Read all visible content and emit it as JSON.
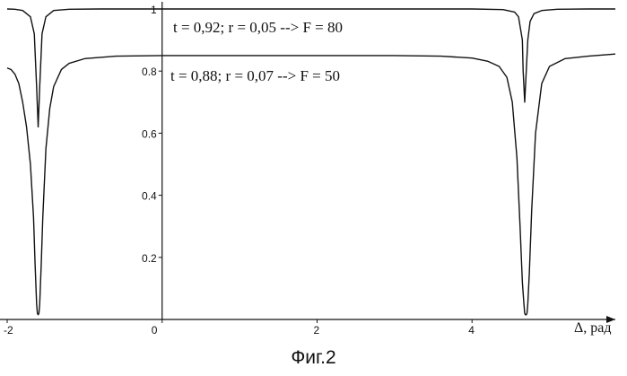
{
  "caption": "Фиг.2",
  "chart_data": {
    "type": "line",
    "xlabel": "Δ, рад",
    "ylabel": "",
    "xlim": [
      -2,
      5.85
    ],
    "ylim": [
      0,
      1.0
    ],
    "x_ticks": [
      -2,
      0,
      2,
      4
    ],
    "x_tick_labels": [
      "-2",
      "0",
      "2",
      "4"
    ],
    "y_ticks": [
      0.2,
      0.4,
      0.6,
      0.8,
      1.0
    ],
    "y_tick_labels": [
      "0.2",
      "0.4",
      "0.6",
      "0.8",
      "1"
    ],
    "grid": false,
    "series": [
      {
        "name": "t = 0,92; r = 0,05 --> F = 80",
        "t": 0.92,
        "r": 0.05,
        "F": 80,
        "x": [
          -2.0,
          -1.9,
          -1.8,
          -1.7,
          -1.65,
          -1.62,
          -1.6,
          -1.58,
          -1.55,
          -1.5,
          -1.4,
          -1.2,
          -0.8,
          0,
          1,
          2,
          3,
          4,
          4.4,
          4.55,
          4.6,
          4.65,
          4.66,
          4.68,
          4.7,
          4.72,
          4.75,
          4.8,
          4.9,
          5.1,
          5.5,
          5.85
        ],
        "y": [
          1.0,
          0.999,
          0.995,
          0.975,
          0.92,
          0.75,
          0.62,
          0.75,
          0.92,
          0.975,
          0.995,
          0.999,
          1.0,
          1.0,
          1.0,
          1.0,
          1.0,
          1.0,
          0.998,
          0.99,
          0.975,
          0.9,
          0.8,
          0.7,
          0.8,
          0.9,
          0.96,
          0.985,
          0.995,
          0.999,
          1.0,
          1.0
        ]
      },
      {
        "name": "t = 0,88; r = 0,07 --> F = 50",
        "t": 0.88,
        "r": 0.07,
        "F": 50,
        "x": [
          -2.0,
          -1.95,
          -1.9,
          -1.85,
          -1.8,
          -1.75,
          -1.7,
          -1.66,
          -1.64,
          -1.62,
          -1.61,
          -1.6,
          -1.59,
          -1.58,
          -1.56,
          -1.54,
          -1.5,
          -1.45,
          -1.4,
          -1.3,
          -1.2,
          -1.0,
          -0.6,
          0,
          1,
          2,
          3,
          3.6,
          4.0,
          4.2,
          4.35,
          4.45,
          4.52,
          4.58,
          4.62,
          4.65,
          4.67,
          4.68,
          4.69,
          4.7,
          4.71,
          4.72,
          4.74,
          4.77,
          4.82,
          4.9,
          5.0,
          5.2,
          5.5,
          5.85
        ],
        "y": [
          0.81,
          0.805,
          0.79,
          0.76,
          0.7,
          0.62,
          0.5,
          0.33,
          0.18,
          0.05,
          0.02,
          0.015,
          0.02,
          0.05,
          0.18,
          0.33,
          0.55,
          0.68,
          0.75,
          0.805,
          0.825,
          0.84,
          0.848,
          0.85,
          0.85,
          0.85,
          0.85,
          0.848,
          0.842,
          0.832,
          0.815,
          0.78,
          0.7,
          0.52,
          0.3,
          0.12,
          0.05,
          0.02,
          0.015,
          0.015,
          0.02,
          0.05,
          0.15,
          0.35,
          0.6,
          0.76,
          0.815,
          0.84,
          0.848,
          0.855
        ]
      }
    ]
  }
}
